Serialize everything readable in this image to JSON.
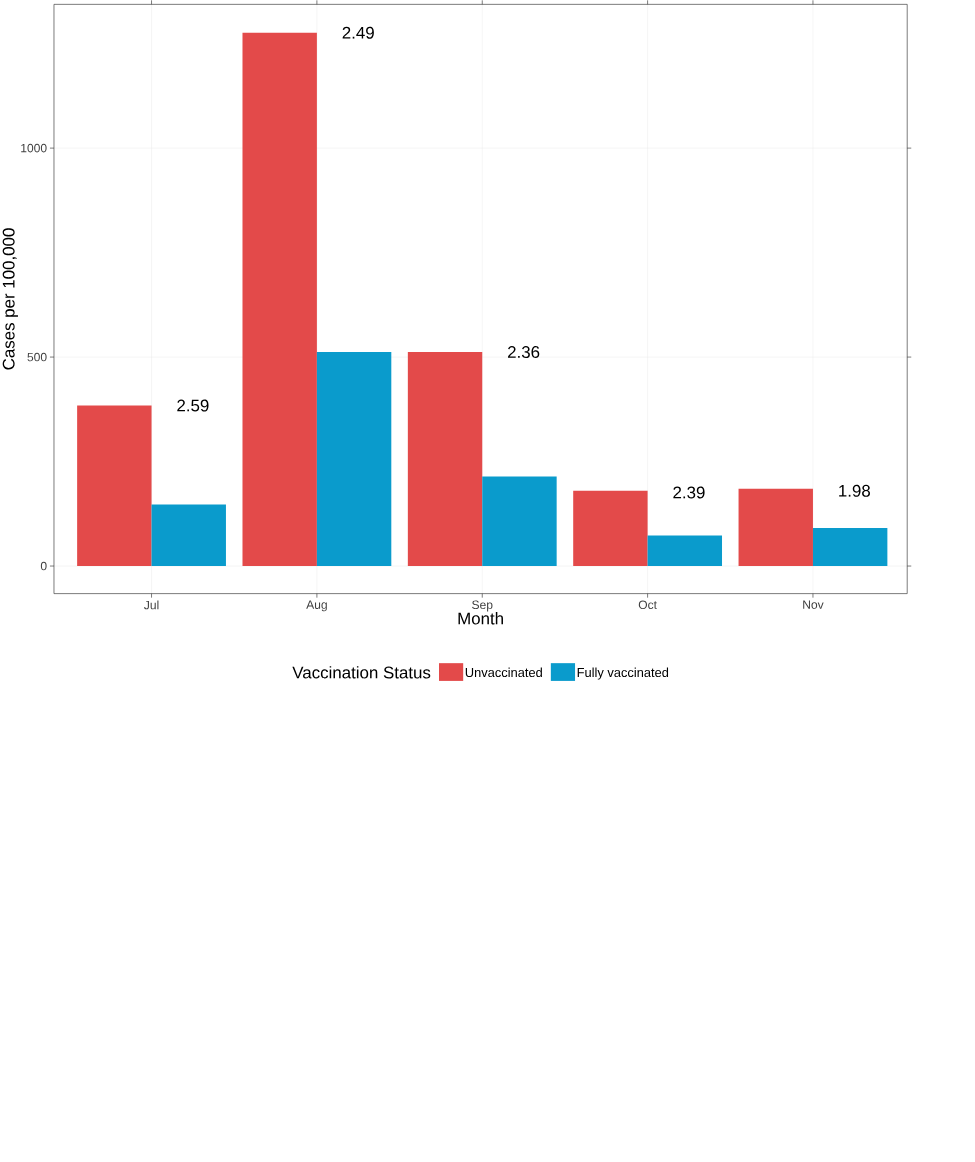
{
  "chart_data": {
    "type": "bar",
    "xlabel": "Month",
    "ylabel": "Cases per 100,000",
    "legend_title": "Vaccination Status",
    "categories": [
      "Jul",
      "Aug",
      "Sep",
      "Oct",
      "Nov"
    ],
    "series": [
      {
        "name": "Unvaccinated",
        "color": "#e34a4a",
        "values": [
          384,
          1276,
          512,
          180,
          185
        ]
      },
      {
        "name": "Fully vaccinated",
        "color": "#0a9bcc",
        "values": [
          147,
          512,
          214,
          73,
          91
        ]
      }
    ],
    "ylim": [
      -66,
      1344
    ],
    "yticks": [
      0,
      500,
      1000
    ],
    "grid": true,
    "legend": "bottom",
    "annotations": [
      {
        "text": "2.59",
        "x": "Jul",
        "y": 384
      },
      {
        "text": "2.49",
        "x": "Aug",
        "y": 1276
      },
      {
        "text": "2.36",
        "x": "Sep",
        "y": 512
      },
      {
        "text": "2.39",
        "x": "Oct",
        "y": 176
      },
      {
        "text": "1.98",
        "x": "Nov",
        "y": 180
      }
    ]
  }
}
